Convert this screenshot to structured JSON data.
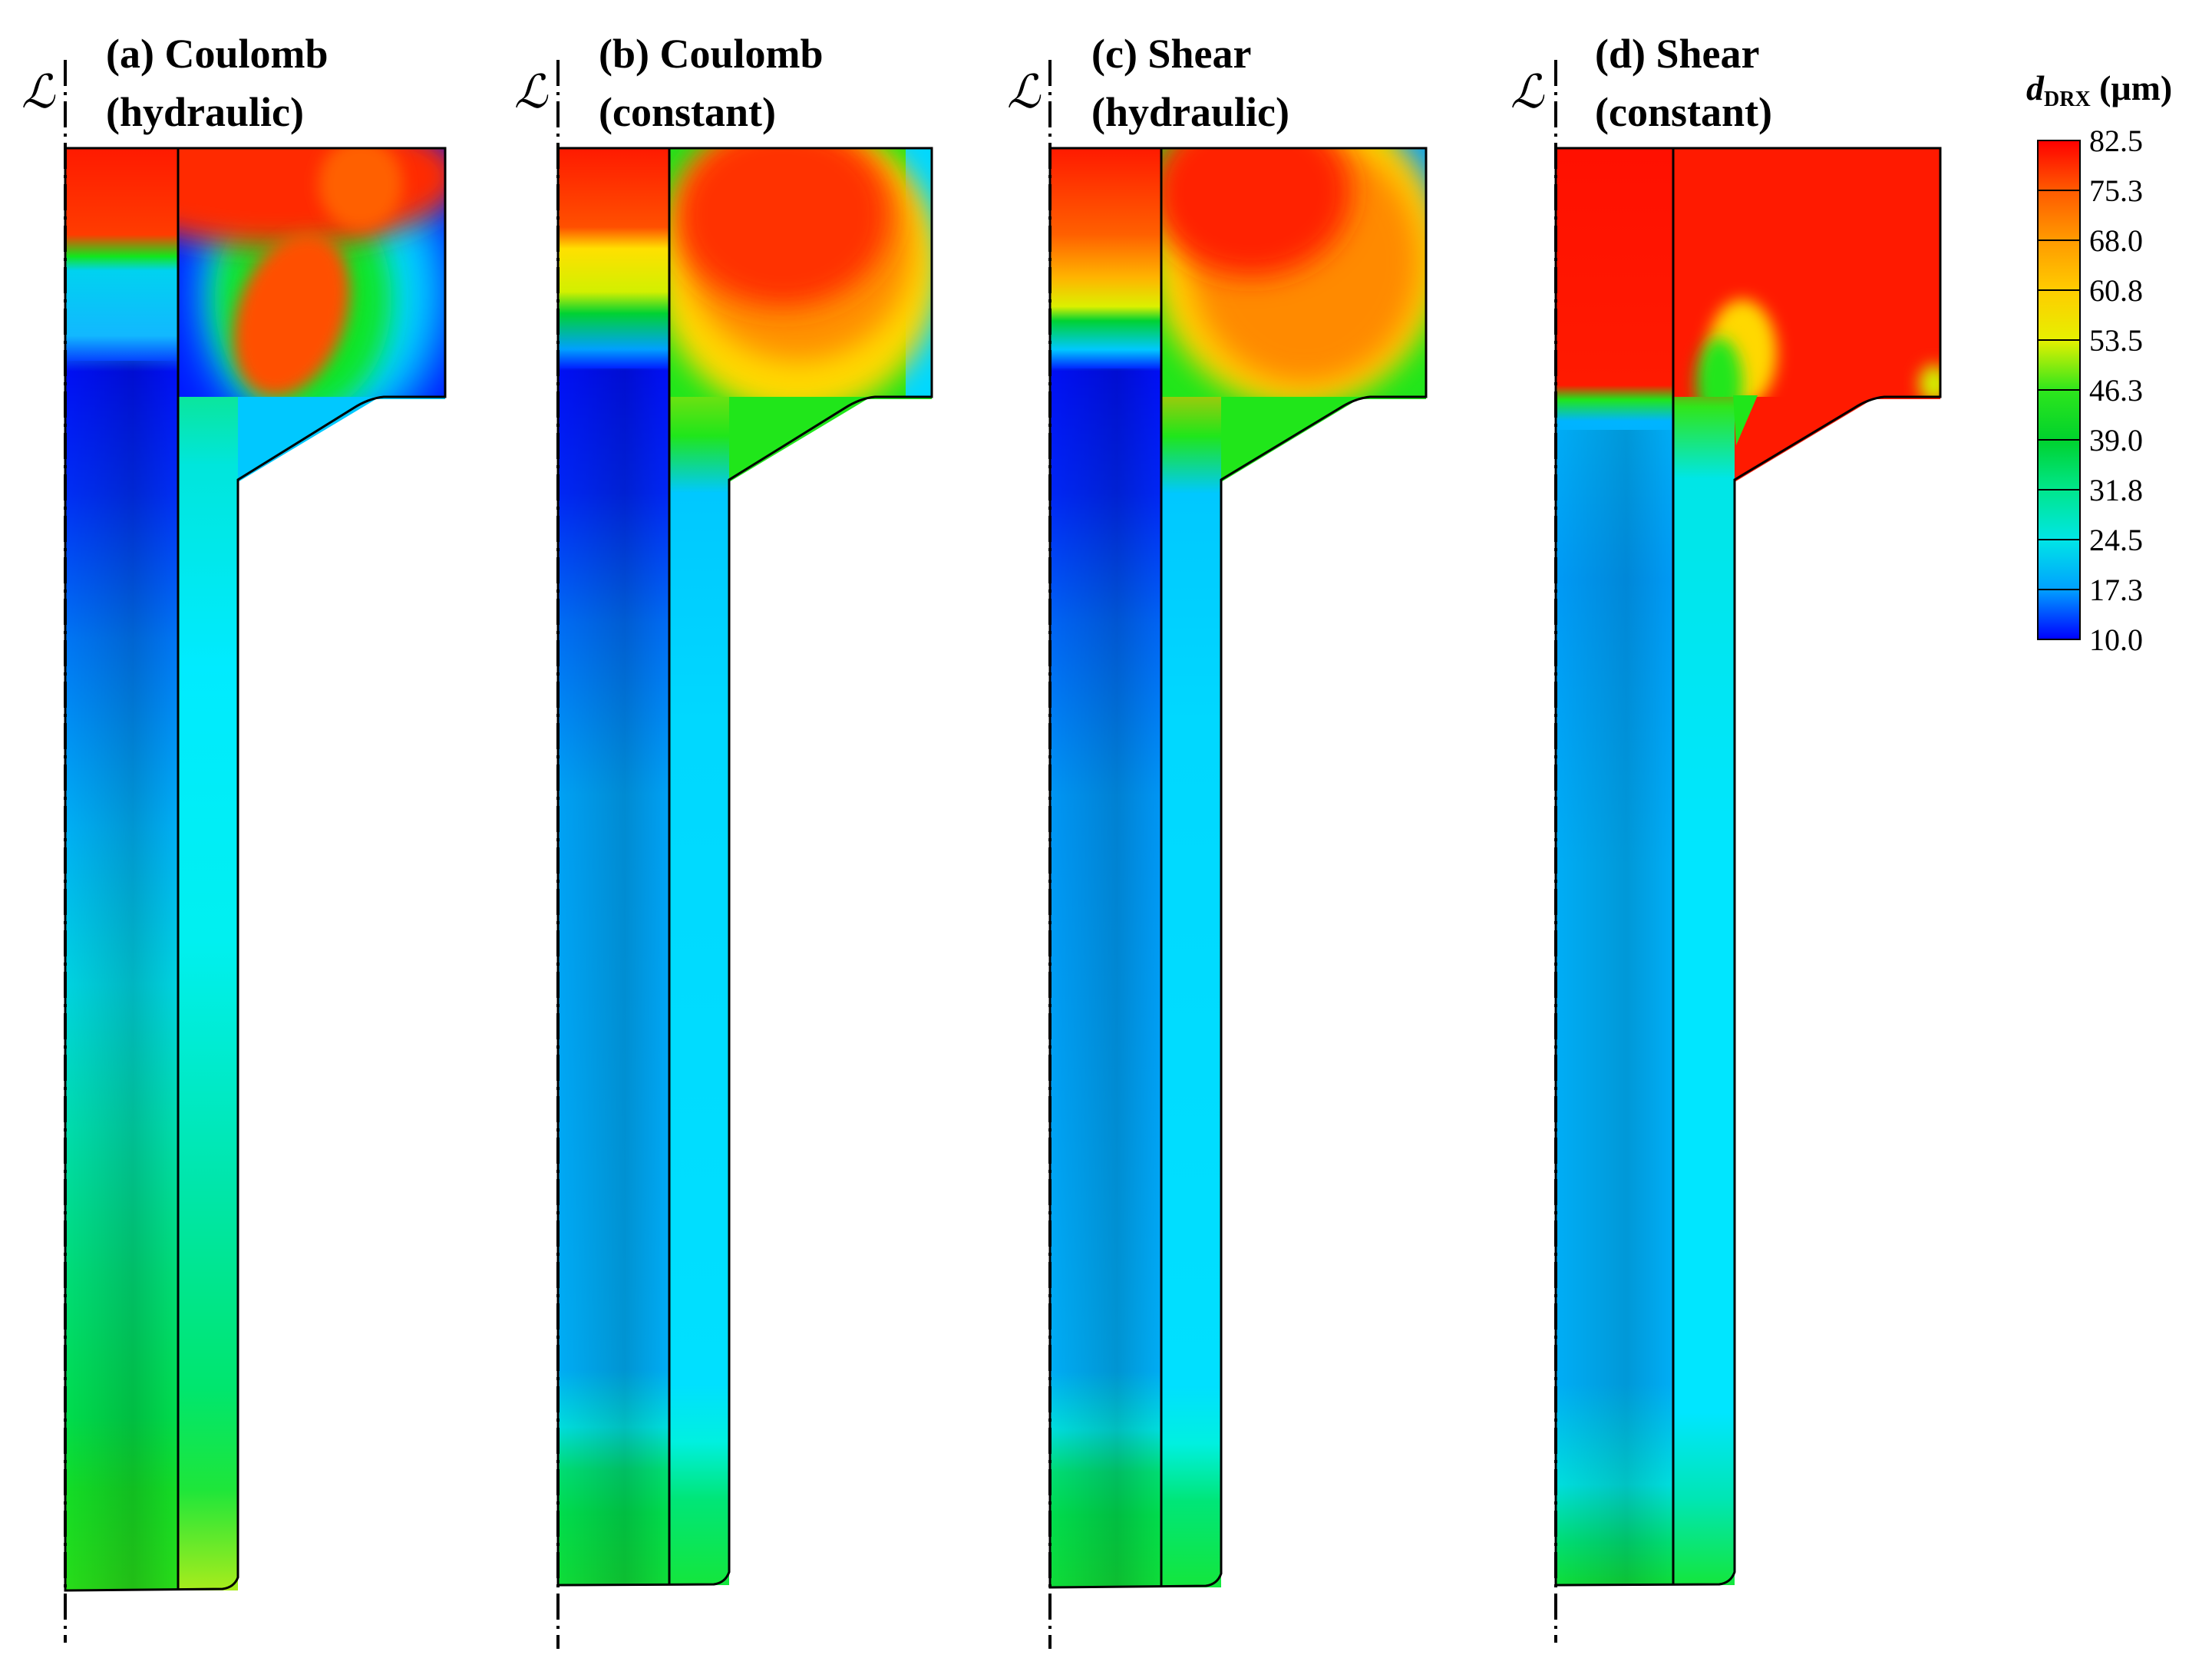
{
  "panels": [
    {
      "label": "(a) Coulomb",
      "sublabel": "(hydraulic)",
      "axis_symbol": "ℒ"
    },
    {
      "label": "(b) Coulomb",
      "sublabel": "(constant)",
      "axis_symbol": "ℒ"
    },
    {
      "label": "(c) Shear",
      "sublabel": "(hydraulic)",
      "axis_symbol": "ℒ"
    },
    {
      "label": "(d) Shear",
      "sublabel": "(constant)",
      "axis_symbol": "ℒ"
    }
  ],
  "legend": {
    "var": "d",
    "sub": "DRX",
    "unit": " (μm)",
    "min": 10.0,
    "max": 82.5,
    "ticks": [
      "82.5",
      "75.3",
      "68.0",
      "60.8",
      "53.5",
      "46.3",
      "39.0",
      "31.8",
      "24.5",
      "17.3",
      "10.0"
    ],
    "colors": [
      "#ff0000",
      "#ff5a00",
      "#ff9a00",
      "#ffcc00",
      "#e6f000",
      "#2ee61c",
      "#00d22d",
      "#00e68c",
      "#00e6e6",
      "#00a0ff",
      "#0000ff"
    ]
  }
}
